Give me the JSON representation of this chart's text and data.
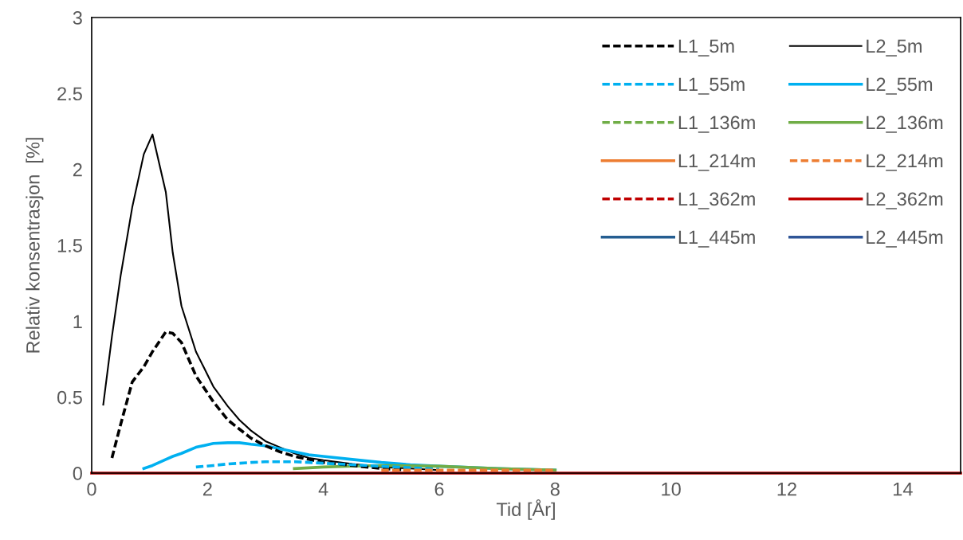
{
  "chart_data": {
    "type": "line",
    "xlabel": "Tid [År]",
    "ylabel": "Relativ konsentrasjon  [%]",
    "x": [
      0,
      0.2,
      0.35,
      0.5,
      0.7,
      0.9,
      1.05,
      1.28,
      1.4,
      1.55,
      1.8,
      2.1,
      2.35,
      2.55,
      2.75,
      3,
      3.25,
      3.5,
      3.75,
      4,
      4.5,
      5,
      5.5,
      6,
      7,
      8,
      9,
      10,
      12,
      15
    ],
    "xlim": [
      0,
      15
    ],
    "xticks": [
      0,
      2,
      4,
      6,
      8,
      10,
      12,
      14
    ],
    "ylim": [
      0,
      3
    ],
    "yticks": [
      0,
      0.5,
      1,
      1.5,
      2,
      2.5,
      3
    ],
    "grid": false,
    "legend": "top right",
    "marker": "none",
    "series": [
      {
        "name": "L1_5m",
        "color": "#000000",
        "line_style": "dashed",
        "values": [
          null,
          null,
          0.1,
          0.32,
          0.6,
          0.7,
          0.8,
          0.93,
          0.92,
          0.86,
          0.64,
          0.47,
          0.35,
          0.29,
          0.23,
          0.18,
          0.14,
          0.11,
          0.09,
          0.07,
          0.05,
          0.03,
          0.02,
          null,
          null,
          null,
          null,
          null,
          null,
          null
        ]
      },
      {
        "name": "L2_5m",
        "color": "#000000",
        "line_style": "solid",
        "values": [
          null,
          0.45,
          0.9,
          1.3,
          1.75,
          2.1,
          2.23,
          1.85,
          1.45,
          1.1,
          0.8,
          0.57,
          0.44,
          0.35,
          0.28,
          0.21,
          0.17,
          0.13,
          0.1,
          0.085,
          0.06,
          0.04,
          0.03,
          0.02,
          null,
          null,
          null,
          null,
          null,
          null
        ]
      },
      {
        "name": "L1_55m",
        "color": "#00b0f0",
        "line_style": "dashed",
        "values": [
          null,
          null,
          null,
          null,
          null,
          null,
          null,
          null,
          null,
          null,
          0.04,
          0.05,
          0.06,
          0.065,
          0.07,
          0.075,
          0.075,
          0.075,
          0.07,
          0.065,
          0.055,
          0.045,
          0.035,
          0.025,
          null,
          null,
          null,
          null,
          null,
          null
        ]
      },
      {
        "name": "L2_55m",
        "color": "#00b0f0",
        "line_style": "solid",
        "values": [
          null,
          null,
          null,
          null,
          null,
          0.03,
          0.05,
          0.09,
          0.11,
          0.13,
          0.17,
          0.195,
          0.2,
          0.2,
          0.19,
          0.18,
          0.16,
          0.14,
          0.12,
          0.11,
          0.09,
          0.07,
          0.055,
          0.045,
          0.03,
          0.02,
          null,
          null,
          null,
          null
        ]
      },
      {
        "name": "L1_136m",
        "color": "#70ad47",
        "line_style": "dashed",
        "values": [
          null,
          null,
          null,
          null,
          null,
          null,
          null,
          null,
          null,
          null,
          null,
          null,
          null,
          null,
          null,
          null,
          null,
          null,
          null,
          null,
          null,
          null,
          null,
          null,
          null,
          null,
          null,
          null,
          null,
          null
        ]
      },
      {
        "name": "L2_136m",
        "color": "#70ad47",
        "line_style": "solid",
        "values": [
          null,
          null,
          null,
          null,
          null,
          null,
          null,
          null,
          null,
          null,
          null,
          null,
          null,
          null,
          null,
          null,
          null,
          0.03,
          0.035,
          0.04,
          0.046,
          0.05,
          0.048,
          0.045,
          0.03,
          0.02,
          null,
          null,
          null,
          null
        ]
      },
      {
        "name": "L1_214m",
        "color": "#ed7d31",
        "line_style": "solid",
        "values": [
          null,
          null,
          null,
          null,
          null,
          null,
          null,
          null,
          null,
          null,
          null,
          null,
          null,
          null,
          null,
          null,
          null,
          null,
          null,
          null,
          null,
          null,
          null,
          null,
          null,
          null,
          null,
          null,
          null,
          null
        ]
      },
      {
        "name": "L2_214m",
        "color": "#ed7d31",
        "line_style": "dashed",
        "values": [
          null,
          null,
          null,
          null,
          null,
          null,
          null,
          null,
          null,
          null,
          null,
          null,
          null,
          null,
          null,
          null,
          null,
          null,
          null,
          null,
          null,
          0.02,
          0.02,
          0.02,
          0.02,
          0.02,
          null,
          null,
          null,
          null
        ]
      },
      {
        "name": "L1_362m",
        "color": "#c00000",
        "line_style": "dashed",
        "values": [
          null,
          null,
          null,
          null,
          null,
          null,
          null,
          null,
          null,
          null,
          null,
          null,
          null,
          null,
          null,
          null,
          null,
          null,
          null,
          null,
          null,
          null,
          null,
          null,
          null,
          null,
          null,
          null,
          null,
          null
        ]
      },
      {
        "name": "L2_362m",
        "color": "#c00000",
        "line_style": "solid",
        "values": [
          0,
          0,
          0,
          0,
          0,
          0,
          0,
          0,
          0,
          0,
          0,
          0,
          0,
          0,
          0,
          0,
          0,
          0,
          0,
          0,
          0,
          0,
          0,
          0,
          0,
          0,
          0,
          0,
          0,
          0
        ]
      },
      {
        "name": "L1_445m",
        "color": "#255e91",
        "line_style": "solid",
        "values": [
          null,
          null,
          null,
          null,
          null,
          null,
          null,
          null,
          null,
          null,
          null,
          null,
          null,
          null,
          null,
          null,
          null,
          null,
          null,
          null,
          null,
          null,
          null,
          null,
          null,
          null,
          null,
          null,
          null,
          null
        ]
      },
      {
        "name": "L2_445m",
        "color": "#2f5597",
        "line_style": "solid",
        "values": [
          null,
          null,
          null,
          null,
          null,
          null,
          null,
          null,
          null,
          null,
          null,
          null,
          null,
          null,
          null,
          null,
          null,
          null,
          null,
          null,
          null,
          null,
          null,
          null,
          null,
          null,
          null,
          null,
          null,
          null
        ]
      }
    ]
  }
}
